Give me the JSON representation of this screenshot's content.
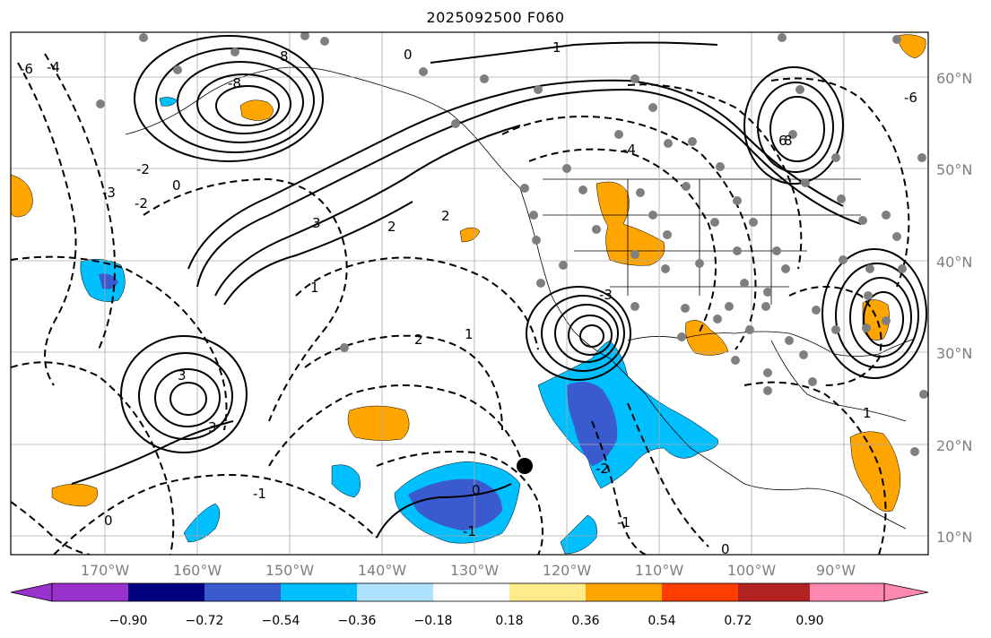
{
  "title": "2025092500 F060",
  "map": {
    "latitude_labels": [
      "60°N",
      "50°N",
      "40°N",
      "30°N",
      "20°N",
      "10°N"
    ],
    "longitude_labels": [
      "170°W",
      "160°W",
      "150°W",
      "140°W",
      "130°W",
      "120°W",
      "110°W",
      "100°W",
      "90°W"
    ],
    "contour_labels": [
      "-6",
      "-4",
      "-3",
      "-2",
      "-2",
      "0",
      "0",
      "0",
      "1",
      "1",
      "2",
      "2",
      "3",
      "3",
      "-8",
      "8",
      "-1",
      "-1",
      "0",
      "-2",
      "-1",
      "2",
      "1",
      "0",
      "-3",
      "-4",
      "3",
      "6",
      "-6",
      "8",
      "1"
    ],
    "storm_marker": "storm-center"
  },
  "colorbar": {
    "ticks": [
      "−0.90",
      "−0.72",
      "−0.54",
      "−0.36",
      "−0.18",
      "0.18",
      "0.36",
      "0.54",
      "0.72",
      "0.90"
    ],
    "colors": [
      "#9932CC",
      "#000080",
      "#3A5BCF",
      "#00BFFF",
      "#ADE2FF",
      "#FFFFFF",
      "#FFEB8A",
      "#FFA500",
      "#FF3D00",
      "#B22222",
      "#FF88B0"
    ]
  }
}
